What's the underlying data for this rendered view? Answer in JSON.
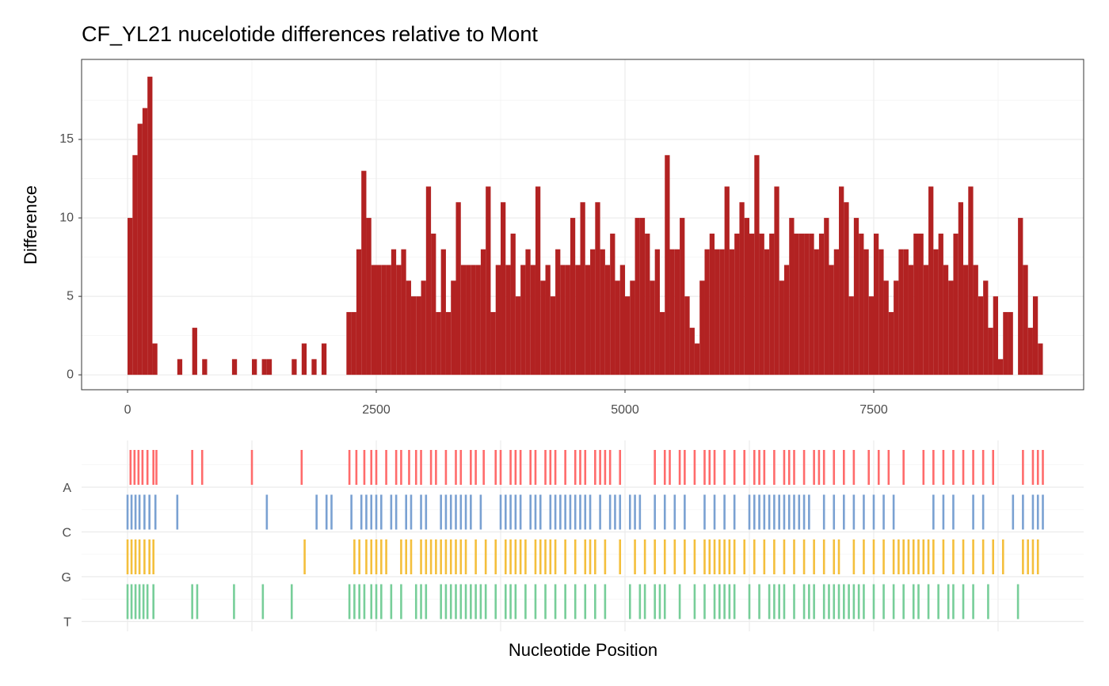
{
  "chart_data": [
    {
      "type": "histogram",
      "title": "CF_YL21 nucelotide differences relative to Mont",
      "ylabel": "Difference",
      "color": "#b22222",
      "bins": [
        0,
        50,
        100,
        150,
        200,
        250,
        300,
        350,
        400,
        450,
        500,
        550,
        600,
        650,
        700,
        750,
        800,
        850,
        900,
        950,
        1000,
        1050,
        1100,
        1150,
        1200,
        1250,
        1300,
        1350,
        1400,
        1450,
        1500,
        1550,
        1600,
        1650,
        1700,
        1750,
        1800,
        1850,
        1900,
        1950,
        2000,
        2050,
        2100,
        2150,
        2200,
        2250,
        2300,
        2350,
        2400,
        2450,
        2500,
        2550,
        2600,
        2650,
        2700,
        2750,
        2800,
        2850,
        2900,
        2950,
        3000,
        3050,
        3100,
        3150,
        3200,
        3250,
        3300,
        3350,
        3400,
        3450,
        3500,
        3550,
        3600,
        3650,
        3700,
        3750,
        3800,
        3850,
        3900,
        3950,
        4000,
        4050,
        4100,
        4150,
        4200,
        4250,
        4300,
        4350,
        4400,
        4450,
        4500,
        4550,
        4600,
        4650,
        4700,
        4750,
        4800,
        4850,
        4900,
        4950,
        5000,
        5050,
        5100,
        5150,
        5200,
        5250,
        5300,
        5350,
        5400,
        5450,
        5500,
        5550,
        5600,
        5650,
        5700,
        5750,
        5800,
        5850,
        5900,
        5950,
        6000,
        6050,
        6100,
        6150,
        6200,
        6250,
        6300,
        6350,
        6400,
        6450,
        6500,
        6550,
        6600,
        6650,
        6700,
        6750,
        6800,
        6850,
        6900,
        6950,
        7000,
        7050,
        7100,
        7150,
        7200,
        7250,
        7300,
        7350,
        7400,
        7450,
        7500,
        7550,
        7600,
        7650,
        7700,
        7750,
        7800,
        7850,
        7900,
        7950,
        8000,
        8050,
        8100,
        8150,
        8200,
        8250,
        8300,
        8350,
        8400,
        8450,
        8500,
        8550,
        8600,
        8650,
        8700,
        8750,
        8800,
        8850,
        8900,
        8950,
        9000,
        9050,
        9100,
        9150,
        9200
      ],
      "counts": [
        10,
        14,
        16,
        17,
        19,
        2,
        0,
        0,
        0,
        0,
        1,
        0,
        0,
        3,
        0,
        1,
        0,
        0,
        0,
        0,
        0,
        1,
        0,
        0,
        0,
        1,
        0,
        1,
        1,
        0,
        0,
        0,
        0,
        1,
        0,
        2,
        0,
        1,
        0,
        2,
        0,
        0,
        0,
        0,
        4,
        4,
        8,
        13,
        10,
        7,
        7,
        7,
        7,
        8,
        7,
        8,
        6,
        5,
        5,
        6,
        12,
        9,
        4,
        8,
        4,
        6,
        11,
        7,
        7,
        7,
        7,
        8,
        12,
        4,
        7,
        11,
        7,
        9,
        5,
        7,
        8,
        7,
        12,
        6,
        7,
        5,
        8,
        7,
        7,
        10,
        7,
        11,
        7,
        8,
        11,
        8,
        7,
        9,
        6,
        7,
        5,
        6,
        10,
        10,
        9,
        6,
        8,
        4,
        14,
        8,
        8,
        10,
        5,
        3,
        2,
        6,
        8,
        9,
        8,
        8,
        12,
        8,
        9,
        11,
        10,
        9,
        14,
        9,
        8,
        9,
        12,
        6,
        7,
        10,
        9,
        9,
        9,
        9,
        8,
        9,
        10,
        7,
        8,
        12,
        11,
        5,
        10,
        9,
        8,
        5,
        9,
        8,
        6,
        4,
        6,
        8,
        8,
        7,
        9,
        9,
        7,
        12,
        8,
        9,
        7,
        6,
        9,
        11,
        7,
        12,
        7,
        5,
        6,
        3,
        5,
        1,
        4,
        4,
        0,
        10,
        7,
        3,
        5,
        2
      ],
      "xlim": [
        -462,
        9610
      ],
      "ylim": [
        -0.95,
        20.1
      ],
      "xticks": [
        0,
        2500,
        5000,
        7500
      ],
      "yticks": [
        0,
        5,
        10,
        15
      ],
      "grid": true
    },
    {
      "type": "strip",
      "xlabel": "Nucleotide Position",
      "xlim": [
        -462,
        9610
      ],
      "xticks": [
        0,
        2500,
        5000,
        7500
      ],
      "grid": true,
      "series": [
        {
          "name": "A",
          "color": "#ff6b6b",
          "values": [
            30,
            70,
            110,
            150,
            200,
            260,
            290,
            650,
            750,
            1250,
            1750,
            2230,
            2300,
            2380,
            2450,
            2500,
            2600,
            2700,
            2750,
            2830,
            2900,
            2950,
            3050,
            3100,
            3200,
            3300,
            3350,
            3450,
            3500,
            3580,
            3700,
            3750,
            3850,
            3900,
            3950,
            4050,
            4100,
            4200,
            4250,
            4300,
            4400,
            4500,
            4550,
            4600,
            4700,
            4750,
            4800,
            4850,
            4950,
            5300,
            5400,
            5450,
            5550,
            5600,
            5700,
            5800,
            5850,
            5900,
            6000,
            6100,
            6200,
            6300,
            6350,
            6400,
            6500,
            6600,
            6650,
            6700,
            6800,
            6900,
            6950,
            7000,
            7100,
            7200,
            7300,
            7450,
            7550,
            7650,
            7800,
            8000,
            8100,
            8200,
            8300,
            8400,
            8500,
            8600,
            8700,
            9000,
            9100,
            9150,
            9200
          ]
        },
        {
          "name": "C",
          "color": "#7aa1d2",
          "values": [
            0,
            40,
            80,
            120,
            170,
            220,
            280,
            500,
            1400,
            1900,
            2000,
            2050,
            2250,
            2350,
            2400,
            2450,
            2500,
            2550,
            2650,
            2700,
            2800,
            2850,
            2950,
            3000,
            3150,
            3200,
            3250,
            3300,
            3350,
            3400,
            3450,
            3550,
            3750,
            3800,
            3850,
            3900,
            3950,
            4050,
            4100,
            4150,
            4250,
            4300,
            4350,
            4400,
            4450,
            4500,
            4550,
            4600,
            4650,
            4750,
            4850,
            4900,
            4950,
            5050,
            5100,
            5150,
            5300,
            5400,
            5500,
            5600,
            5800,
            5900,
            6000,
            6100,
            6250,
            6300,
            6350,
            6400,
            6450,
            6500,
            6550,
            6600,
            6650,
            6700,
            6750,
            6800,
            6850,
            7000,
            7100,
            7200,
            7300,
            7400,
            7500,
            7600,
            7700,
            8100,
            8200,
            8300,
            8500,
            8600,
            8900,
            9000,
            9100,
            9150,
            9200
          ]
        },
        {
          "name": "G",
          "color": "#f4bf3c",
          "values": [
            0,
            40,
            80,
            120,
            170,
            220,
            260,
            1780,
            2280,
            2330,
            2400,
            2450,
            2500,
            2550,
            2600,
            2750,
            2800,
            2850,
            2950,
            3000,
            3050,
            3100,
            3150,
            3200,
            3250,
            3300,
            3350,
            3400,
            3500,
            3600,
            3700,
            3800,
            3850,
            3900,
            3950,
            4000,
            4100,
            4150,
            4200,
            4250,
            4300,
            4400,
            4500,
            4600,
            4650,
            4700,
            4800,
            4950,
            5100,
            5200,
            5300,
            5400,
            5500,
            5600,
            5700,
            5800,
            5850,
            5900,
            5950,
            6000,
            6050,
            6100,
            6200,
            6300,
            6400,
            6500,
            6600,
            6700,
            6800,
            6900,
            7000,
            7100,
            7150,
            7300,
            7400,
            7500,
            7600,
            7700,
            7750,
            7800,
            7850,
            7900,
            7950,
            8000,
            8050,
            8100,
            8200,
            8300,
            8400,
            8500,
            8600,
            8700,
            8800,
            9000,
            9050,
            9100,
            9150
          ]
        },
        {
          "name": "T",
          "color": "#77ce99",
          "values": [
            0,
            40,
            80,
            120,
            160,
            200,
            260,
            650,
            700,
            1070,
            1360,
            1650,
            2230,
            2280,
            2330,
            2380,
            2450,
            2500,
            2550,
            2650,
            2750,
            2900,
            2950,
            3000,
            3150,
            3200,
            3250,
            3300,
            3350,
            3400,
            3450,
            3500,
            3550,
            3600,
            3700,
            3800,
            3850,
            3900,
            4000,
            4100,
            4200,
            4300,
            4400,
            4500,
            4600,
            4700,
            4800,
            5050,
            5150,
            5200,
            5300,
            5350,
            5400,
            5550,
            5700,
            5800,
            5900,
            5950,
            6000,
            6050,
            6100,
            6250,
            6350,
            6450,
            6500,
            6550,
            6600,
            6700,
            6800,
            6850,
            6900,
            7000,
            7050,
            7100,
            7150,
            7200,
            7250,
            7300,
            7350,
            7400,
            7500,
            7600,
            7700,
            7800,
            7900,
            7950,
            8050,
            8150,
            8250,
            8300,
            8400,
            8500,
            8650,
            8950
          ]
        }
      ]
    }
  ]
}
